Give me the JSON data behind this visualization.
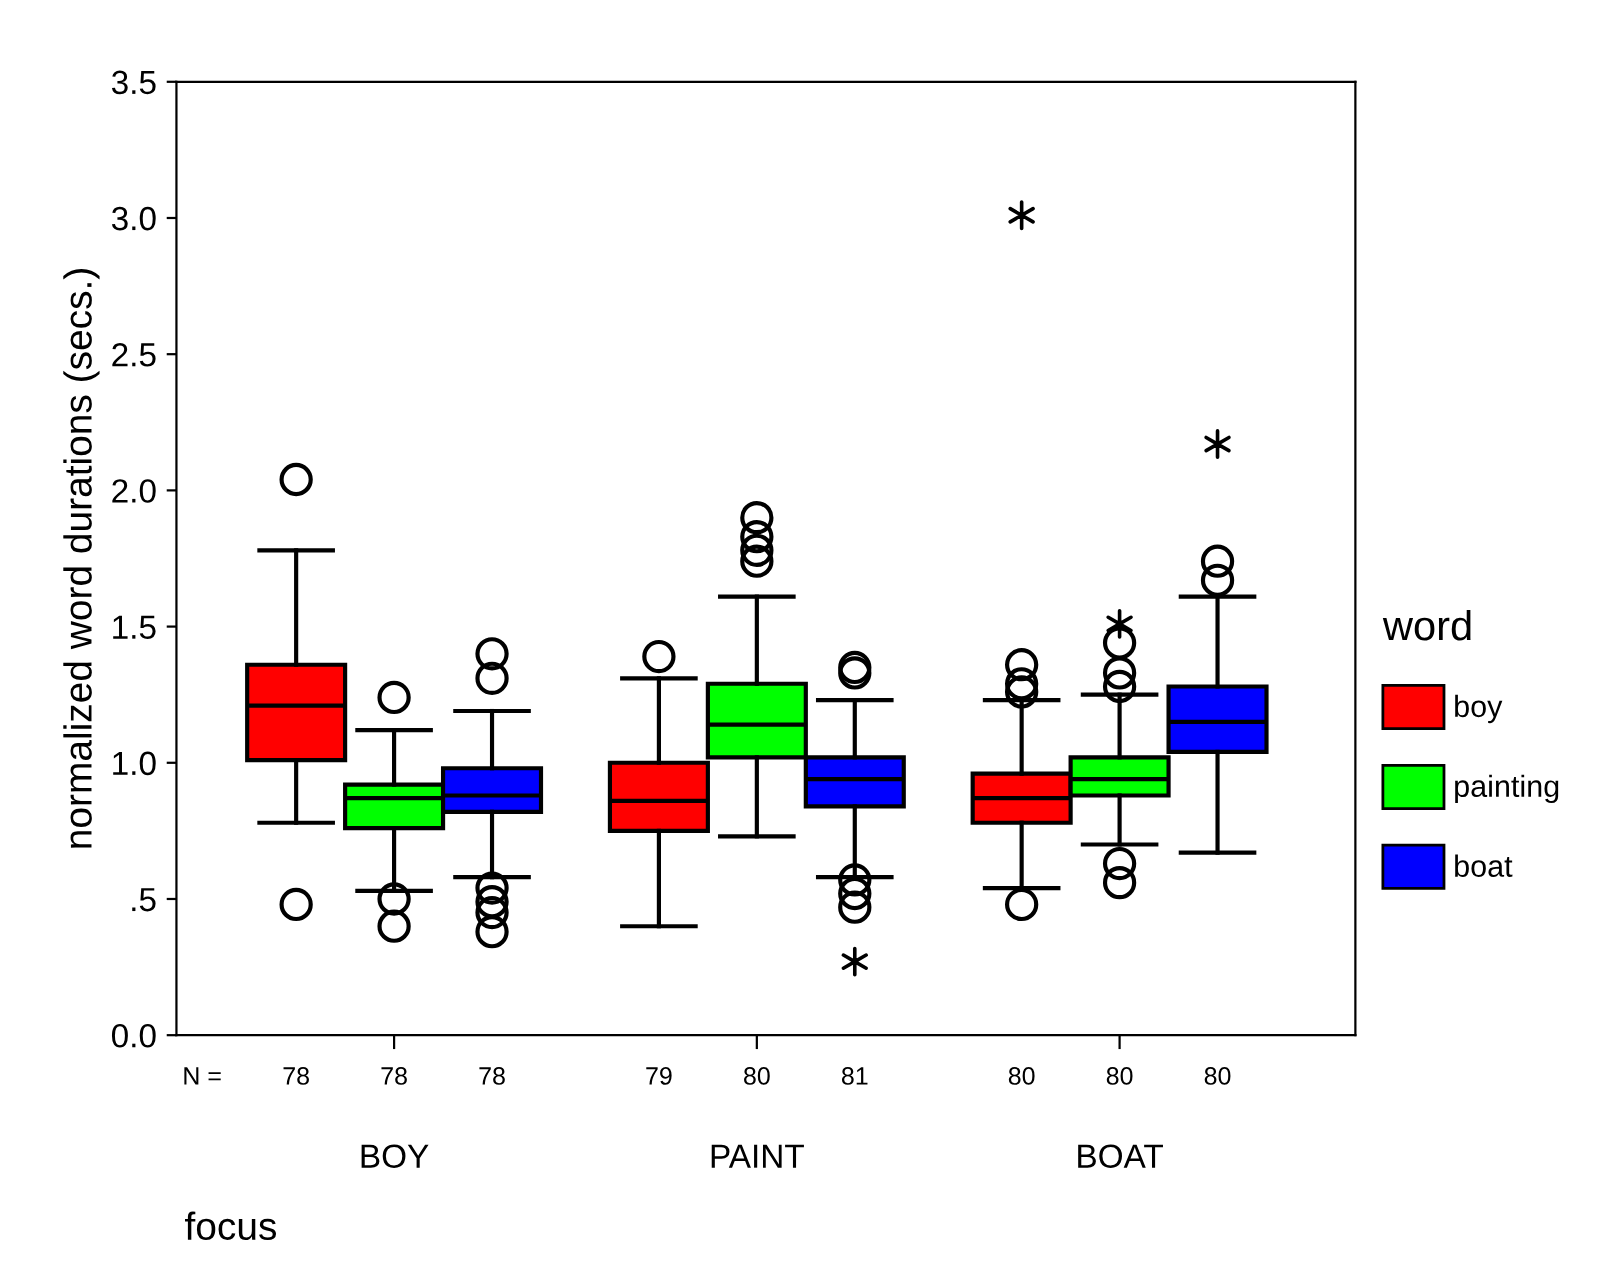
{
  "chart_data": {
    "type": "box",
    "xlabel": "focus",
    "ylabel": "normalized word durations (secs.)",
    "legend_title": "word",
    "legend": "right",
    "grid": false,
    "categories": [
      "BOY",
      "PAINT",
      "BOAT"
    ],
    "ylim": [
      0,
      3.5
    ],
    "yticks": [
      {
        "value": 0,
        "label": "0.0"
      },
      {
        "value": 0.5,
        "label": ".5"
      },
      {
        "value": 1,
        "label": "1.0"
      },
      1.5,
      {
        "value": 2,
        "label": "2.0"
      },
      2.5,
      {
        "value": 3,
        "label": "3.0"
      },
      3.5
    ],
    "series": [
      {
        "name": "boy",
        "color": "#ff0000",
        "boxes": [
          {
            "low": 0.78,
            "q1": 1.01,
            "median": 1.21,
            "q3": 1.36,
            "high": 1.78,
            "outliers": [
              2.04,
              0.48
            ]
          },
          {
            "low": 0.4,
            "q1": 0.75,
            "median": 0.86,
            "q3": 1.0,
            "high": 1.31,
            "outliers": [
              1.39
            ]
          },
          {
            "low": 0.54,
            "q1": 0.78,
            "median": 0.87,
            "q3": 0.96,
            "high": 1.23,
            "outliers": [
              3.01,
              1.36,
              1.29,
              1.26,
              0.48
            ]
          }
        ]
      },
      {
        "name": "painting",
        "color": "#00ff00",
        "boxes": [
          {
            "low": 0.53,
            "q1": 0.76,
            "median": 0.87,
            "q3": 0.92,
            "high": 1.12,
            "outliers": [
              1.24,
              0.5,
              0.4
            ]
          },
          {
            "low": 0.73,
            "q1": 1.02,
            "median": 1.14,
            "q3": 1.29,
            "high": 1.61,
            "outliers": [
              1.9,
              1.83,
              1.78,
              1.74
            ]
          },
          {
            "low": 0.7,
            "q1": 0.88,
            "median": 0.94,
            "q3": 1.02,
            "high": 1.25,
            "outliers": [
              1.51,
              1.44,
              1.33,
              1.28,
              0.63,
              0.56
            ]
          }
        ]
      },
      {
        "name": "boat",
        "color": "#0000ff",
        "boxes": [
          {
            "low": 0.58,
            "q1": 0.82,
            "median": 0.88,
            "q3": 0.98,
            "high": 1.19,
            "outliers": [
              1.4,
              1.31,
              0.54,
              0.49,
              0.45,
              0.38
            ]
          },
          {
            "low": 0.58,
            "q1": 0.84,
            "median": 0.94,
            "q3": 1.02,
            "high": 1.23,
            "outliers": [
              1.35,
              1.33,
              0.57,
              0.52,
              0.47,
              0.27
            ]
          },
          {
            "low": 0.67,
            "q1": 1.04,
            "median": 1.15,
            "q3": 1.28,
            "high": 1.61,
            "outliers": [
              2.17,
              1.74,
              1.67
            ]
          }
        ]
      }
    ],
    "annotations": [
      "N =",
      "78",
      "78",
      "78",
      "79",
      "80",
      "81",
      "80",
      "80",
      "80"
    ]
  }
}
